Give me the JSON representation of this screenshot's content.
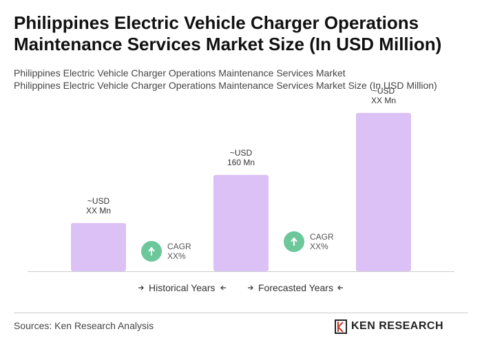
{
  "chart_data": {
    "type": "bar",
    "title": "Philippines Electric Vehicle Charger Operations Maintenance Services Market Size (In USD Million)",
    "subtitle": [
      "Philippines Electric Vehicle Charger Operations Maintenance Services Market",
      "Philippines Electric Vehicle Charger Operations Maintenance Services Market Size (In USD Million)"
    ],
    "categories": [
      null,
      null,
      null
    ],
    "values": [
      80,
      160,
      263
    ],
    "value_labels": [
      "~USD\nXX Mn",
      "~USD\n160 Mn",
      "~USD\nXX Mn"
    ],
    "color": "#dcc1f7",
    "annotations": [
      {
        "label": "CAGR\nXX%",
        "color": "#6cc79a"
      },
      {
        "label": "CAGR\nXX%",
        "color": "#6cc79a"
      }
    ],
    "legend": [
      "Historical Years",
      "Forecasted Years"
    ],
    "source": "Sources: Ken Research Analysis",
    "logo": "KEN RESEARCH"
  }
}
